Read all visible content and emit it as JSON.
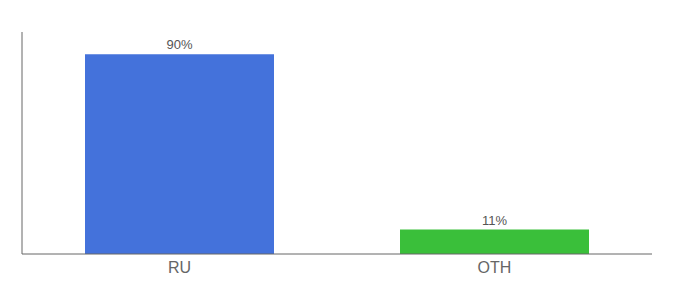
{
  "chart_data": {
    "type": "bar",
    "categories": [
      "RU",
      "OTH"
    ],
    "values": [
      90,
      11
    ],
    "value_labels": [
      "90%",
      "11%"
    ],
    "colors": [
      "#4472db",
      "#3abf3a"
    ],
    "ylim": [
      0,
      100
    ],
    "data_labels": true,
    "tick_labels": "x",
    "grid": false
  }
}
